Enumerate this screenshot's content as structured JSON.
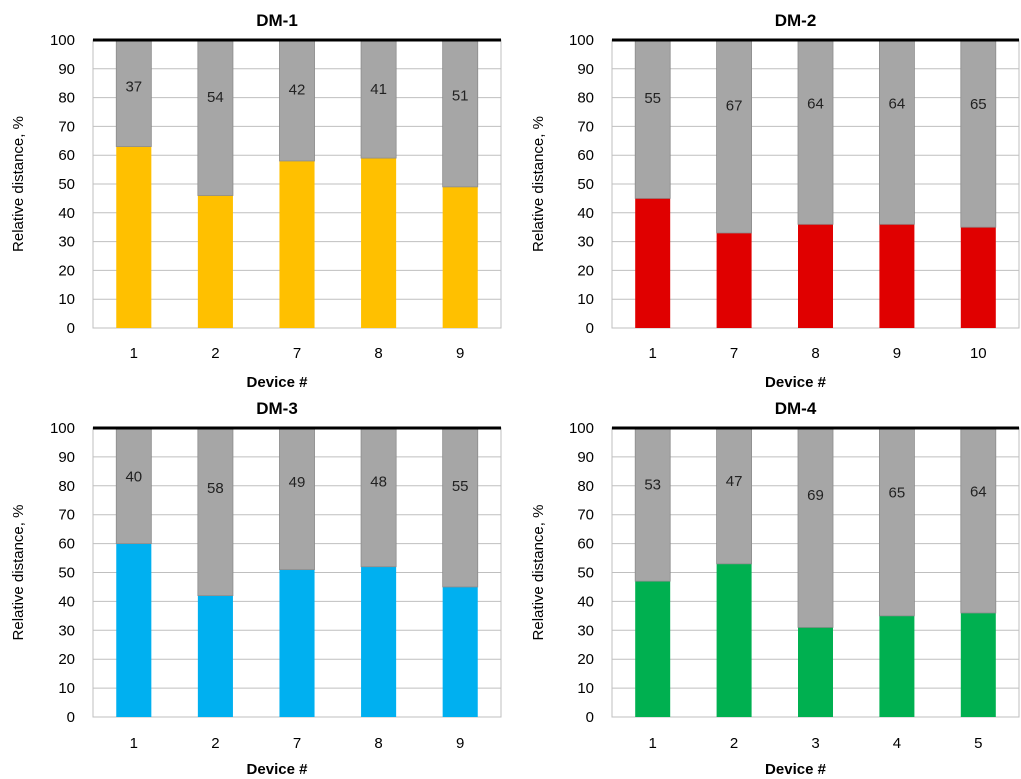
{
  "chart_data": [
    {
      "type": "bar",
      "stacked": true,
      "title": "DM-1",
      "xlabel": "Device #",
      "ylabel": "Relative distance, %",
      "ylim": [
        0,
        100
      ],
      "yticks": [
        0,
        10,
        20,
        30,
        40,
        50,
        60,
        70,
        80,
        90,
        100
      ],
      "grid": true,
      "categories": [
        "1",
        "2",
        "7",
        "8",
        "9"
      ],
      "series": [
        {
          "values": [
            63,
            46,
            58,
            59,
            49
          ],
          "color": "#FFC000"
        },
        {
          "values": [
            37,
            54,
            42,
            41,
            51
          ],
          "color": "#A6A6A6",
          "data_labels": [
            "37",
            "54",
            "42",
            "41",
            "51"
          ]
        }
      ]
    },
    {
      "type": "bar",
      "stacked": true,
      "title": "DM-2",
      "xlabel": "Device #",
      "ylabel": "Relative distance, %",
      "ylim": [
        0,
        100
      ],
      "yticks": [
        0,
        10,
        20,
        30,
        40,
        50,
        60,
        70,
        80,
        90,
        100
      ],
      "grid": true,
      "categories": [
        "1",
        "7",
        "8",
        "9",
        "10"
      ],
      "series": [
        {
          "values": [
            45,
            33,
            36,
            36,
            35
          ],
          "color": "#E00000"
        },
        {
          "values": [
            55,
            67,
            64,
            64,
            65
          ],
          "color": "#A6A6A6",
          "data_labels": [
            "55",
            "67",
            "64",
            "64",
            "65"
          ]
        }
      ]
    },
    {
      "type": "bar",
      "stacked": true,
      "title": "DM-3",
      "xlabel": "Device #",
      "ylabel": "Relative distance, %",
      "ylim": [
        0,
        100
      ],
      "yticks": [
        0,
        10,
        20,
        30,
        40,
        50,
        60,
        70,
        80,
        90,
        100
      ],
      "grid": true,
      "categories": [
        "1",
        "2",
        "7",
        "8",
        "9"
      ],
      "series": [
        {
          "values": [
            60,
            42,
            51,
            52,
            45
          ],
          "color": "#00B0F0"
        },
        {
          "values": [
            40,
            58,
            49,
            48,
            55
          ],
          "color": "#A6A6A6",
          "data_labels": [
            "40",
            "58",
            "49",
            "48",
            "55"
          ]
        }
      ]
    },
    {
      "type": "bar",
      "stacked": true,
      "title": "DM-4",
      "xlabel": "Device #",
      "ylabel": "Relative distance, %",
      "ylim": [
        0,
        100
      ],
      "yticks": [
        0,
        10,
        20,
        30,
        40,
        50,
        60,
        70,
        80,
        90,
        100
      ],
      "grid": true,
      "categories": [
        "1",
        "2",
        "3",
        "4",
        "5"
      ],
      "series": [
        {
          "values": [
            47,
            53,
            31,
            35,
            36
          ],
          "color": "#00B050"
        },
        {
          "values": [
            53,
            47,
            69,
            65,
            64
          ],
          "color": "#A6A6A6",
          "data_labels": [
            "53",
            "47",
            "69",
            "65",
            "64"
          ]
        }
      ]
    }
  ]
}
